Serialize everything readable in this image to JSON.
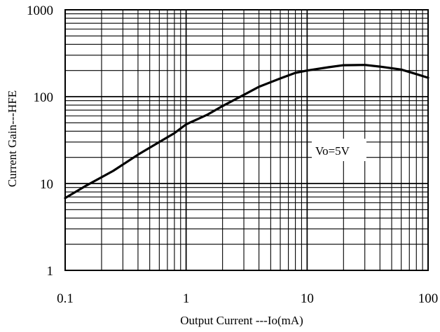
{
  "chart_data": {
    "type": "line",
    "xlabel": "Output  Current ---Io(mA)",
    "ylabel": "Current Gain---HFE",
    "x_scale": "log",
    "y_scale": "log",
    "xlim": [
      0.1,
      100
    ],
    "ylim": [
      1,
      1000
    ],
    "x_ticks": [
      "0.1",
      "1",
      "10",
      "100"
    ],
    "y_ticks": [
      "1",
      "10",
      "100",
      "1000"
    ],
    "grid": true,
    "annotation": "Vo=5V",
    "series": [
      {
        "x": [
          0.1,
          0.15,
          0.25,
          0.4,
          0.6,
          0.8,
          1,
          1.5,
          2,
          3,
          4,
          6,
          8,
          10,
          15,
          20,
          30,
          40,
          60,
          80,
          100
        ],
        "values": [
          6.8,
          9.5,
          14,
          21.5,
          30,
          38,
          48,
          62,
          78,
          105,
          130,
          162,
          188,
          200,
          218,
          230,
          232,
          222,
          205,
          182,
          165
        ]
      }
    ]
  }
}
